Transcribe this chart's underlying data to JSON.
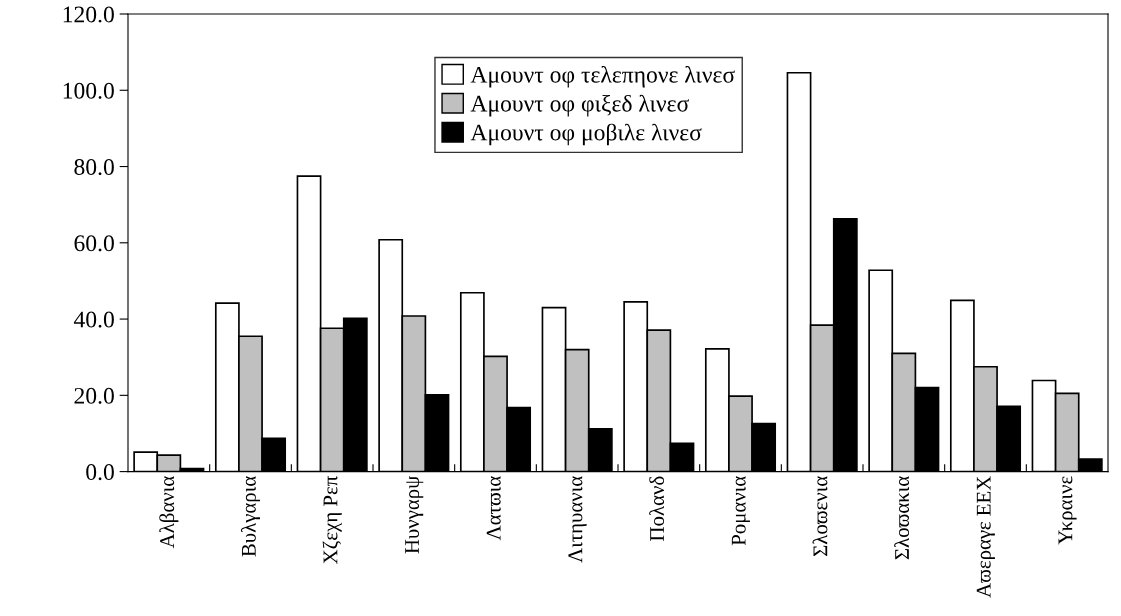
{
  "chart_data": {
    "type": "bar",
    "categories": [
      "Αλβανια",
      "Βυλγαρια",
      "Χζεχη Ρεπ",
      "Ηυνγαρψ",
      "Λατϖια",
      "Λιτηυανια",
      "Πολανδ",
      "Ρομανια",
      "Σλοϖενια",
      "Σλοϖακια",
      "Αϖεραγε ΕΕΧ",
      "Υκραινε"
    ],
    "series": [
      {
        "name": "Αμουντ οφ τελεπηονε λινεσ",
        "color": "#ffffff",
        "values": [
          5.1,
          44.2,
          77.5,
          60.8,
          46.9,
          43.0,
          44.5,
          32.2,
          104.6,
          52.8,
          44.9,
          23.9
        ]
      },
      {
        "name": "Αμουντ οφ φιξεδ λινεσ",
        "color": "#c0c0c0",
        "values": [
          4.3,
          35.5,
          37.6,
          40.8,
          30.2,
          32.0,
          37.1,
          19.8,
          38.4,
          31.0,
          27.5,
          20.5
        ]
      },
      {
        "name": "Αμουντ οφ μοβιλε λινεσ",
        "color": "#000000",
        "values": [
          0.8,
          8.7,
          40.2,
          20.1,
          16.8,
          11.2,
          7.4,
          12.6,
          66.3,
          22.0,
          17.1,
          3.3
        ]
      }
    ],
    "ylim": [
      0,
      120
    ],
    "yticks": [
      {
        "value": 0,
        "label": "0.0"
      },
      {
        "value": 20,
        "label": "20.0"
      },
      {
        "value": 40,
        "label": "40.0"
      },
      {
        "value": 60,
        "label": "60.0"
      },
      {
        "value": 80,
        "label": "80.0"
      },
      {
        "value": 100,
        "label": "100.0"
      },
      {
        "value": 120,
        "label": "120.0"
      }
    ],
    "grid": false,
    "legend": "top center"
  }
}
